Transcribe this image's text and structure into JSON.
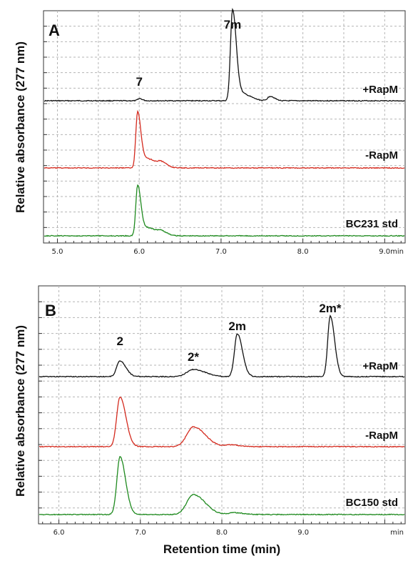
{
  "ylabel": "Relative absorbance (277 nm)",
  "xlabel": "Retention time (min)",
  "colors": {
    "black": "#111111",
    "red": "#d42a1e",
    "green": "#1f8a1f",
    "grid": "#b5b5b5"
  },
  "chart_data": [
    {
      "panel": "A",
      "type": "line",
      "xlim": [
        4.83,
        9.25
      ],
      "x_ticks": [
        5.0,
        6.0,
        7.0,
        8.0
      ],
      "x_tick_labels": [
        "5.0",
        "6.0",
        "7.0",
        "8.0"
      ],
      "x_tick_last_label": "9.0min",
      "grid": true,
      "traces": [
        {
          "name": "+RapM",
          "color": "black",
          "peaks": [
            {
              "x": 6.0,
              "h": 0.025,
              "w": 0.02
            },
            {
              "x": 7.14,
              "h": 1.0,
              "w": 0.025
            },
            {
              "x": 7.25,
              "h": 0.08,
              "w": 0.06
            },
            {
              "x": 7.6,
              "h": 0.05,
              "w": 0.03
            }
          ]
        },
        {
          "name": "-RapM",
          "color": "red",
          "peaks": [
            {
              "x": 5.98,
              "h": 0.9,
              "w": 0.022
            },
            {
              "x": 6.1,
              "h": 0.15,
              "w": 0.06
            },
            {
              "x": 6.27,
              "h": 0.07,
              "w": 0.04
            }
          ]
        },
        {
          "name": "BC231 std",
          "color": "green",
          "peaks": [
            {
              "x": 5.98,
              "h": 0.85,
              "w": 0.022
            },
            {
              "x": 6.1,
              "h": 0.14,
              "w": 0.06
            },
            {
              "x": 6.27,
              "h": 0.06,
              "w": 0.04
            }
          ]
        }
      ],
      "annotations": [
        {
          "text": "7",
          "x": 6.0
        },
        {
          "text": "7m",
          "x": 7.14
        }
      ]
    },
    {
      "panel": "B",
      "type": "line",
      "xlim": [
        5.75,
        10.25
      ],
      "x_ticks": [
        6.0,
        7.0,
        8.0,
        9.0
      ],
      "x_tick_labels": [
        "6.0",
        "7.0",
        "8.0",
        "9.0"
      ],
      "x_tick_last_label": "min",
      "grid": true,
      "traces": [
        {
          "name": "+RapM",
          "color": "black",
          "peaks": [
            {
              "x": 6.75,
              "h": 0.22,
              "w": 0.04
            },
            {
              "x": 7.65,
              "h": 0.1,
              "w": 0.08
            },
            {
              "x": 8.19,
              "h": 0.6,
              "w": 0.035
            },
            {
              "x": 9.33,
              "h": 0.85,
              "w": 0.03
            }
          ]
        },
        {
          "name": "-RapM",
          "color": "red",
          "peaks": [
            {
              "x": 6.75,
              "h": 0.85,
              "w": 0.04
            },
            {
              "x": 7.65,
              "h": 0.34,
              "w": 0.08
            },
            {
              "x": 8.1,
              "h": 0.03,
              "w": 0.06
            }
          ]
        },
        {
          "name": "BC150 std",
          "color": "green",
          "peaks": [
            {
              "x": 6.75,
              "h": 0.9,
              "w": 0.038
            },
            {
              "x": 7.65,
              "h": 0.31,
              "w": 0.08
            },
            {
              "x": 8.15,
              "h": 0.03,
              "w": 0.06
            }
          ]
        }
      ],
      "annotations": [
        {
          "text": "2",
          "x": 6.75
        },
        {
          "text": "2*",
          "x": 7.65
        },
        {
          "text": "2m",
          "x": 8.19
        },
        {
          "text": "2m*",
          "x": 9.33
        }
      ]
    }
  ]
}
